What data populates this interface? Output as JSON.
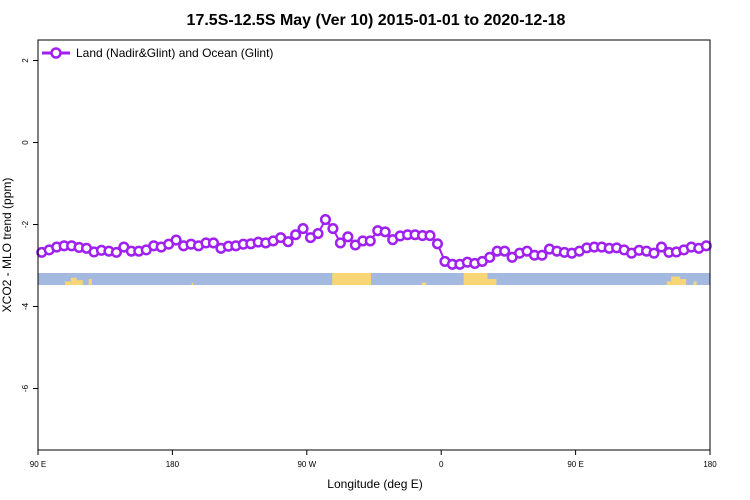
{
  "chart_data": {
    "type": "line",
    "title": "17.5S-12.5S May (Ver 10)   2015-01-01 to 2020-12-18",
    "xlabel": "Longitude (deg E)",
    "ylabel": "XCO2 - MLO trend (ppm)",
    "x_ticks": [
      {
        "value": 90,
        "label": "90 E"
      },
      {
        "value": 180,
        "label": "180"
      },
      {
        "value": 270,
        "label": "90 W"
      },
      {
        "value": 360,
        "label": "0"
      },
      {
        "value": 450,
        "label": "90 E"
      },
      {
        "value": 540,
        "label": "180"
      }
    ],
    "y_ticks": [
      {
        "value": 2,
        "label": "2"
      },
      {
        "value": 0,
        "label": "0"
      },
      {
        "value": -2,
        "label": "-2"
      },
      {
        "value": -4,
        "label": "-4"
      },
      {
        "value": -6,
        "label": "-6"
      }
    ],
    "xlim": [
      90,
      540
    ],
    "ylim": [
      -7.5,
      2.5
    ],
    "legend": {
      "position": "top-left",
      "entries": [
        "Land (Nadir&Glint) and Ocean (Glint)"
      ]
    },
    "colors": {
      "series": "#a020f0",
      "ocean": "#a3b9df",
      "land": "#f8d675"
    },
    "series": [
      {
        "name": "Land (Nadir&Glint) and Ocean (Glint)",
        "x": [
          92.5,
          97.5,
          102.5,
          107.5,
          112.5,
          117.5,
          122.5,
          127.5,
          132.5,
          137.5,
          142.5,
          147.5,
          152.5,
          157.5,
          162.5,
          167.5,
          172.5,
          177.5,
          182.5,
          187.5,
          192.5,
          197.5,
          202.5,
          207.5,
          212.5,
          217.5,
          222.5,
          227.5,
          232.5,
          237.5,
          242.5,
          247.5,
          252.5,
          257.5,
          262.5,
          267.5,
          272.5,
          277.5,
          282.5,
          287.5,
          292.5,
          297.5,
          302.5,
          307.5,
          312.5,
          317.5,
          322.5,
          327.5,
          332.5,
          337.5,
          342.5,
          347.5,
          352.5,
          357.5,
          362.5,
          367.5,
          372.5,
          377.5,
          382.5,
          387.5,
          392.5,
          397.5,
          402.5,
          407.5,
          412.5,
          417.5,
          422.5,
          427.5,
          432.5,
          437.5,
          442.5,
          447.5,
          452.5,
          457.5,
          462.5,
          467.5,
          472.5,
          477.5,
          482.5,
          487.5,
          492.5,
          497.5,
          502.5,
          507.5,
          512.5,
          517.5,
          522.5,
          527.5,
          532.5,
          537.5
        ],
        "y": [
          -2.68,
          -2.62,
          -2.55,
          -2.52,
          -2.52,
          -2.56,
          -2.58,
          -2.67,
          -2.63,
          -2.65,
          -2.68,
          -2.55,
          -2.65,
          -2.65,
          -2.62,
          -2.52,
          -2.55,
          -2.48,
          -2.38,
          -2.52,
          -2.48,
          -2.52,
          -2.45,
          -2.45,
          -2.58,
          -2.53,
          -2.52,
          -2.48,
          -2.47,
          -2.43,
          -2.45,
          -2.4,
          -2.32,
          -2.42,
          -2.25,
          -2.1,
          -2.32,
          -2.22,
          -1.88,
          -2.1,
          -2.45,
          -2.3,
          -2.5,
          -2.4,
          -2.4,
          -2.15,
          -2.18,
          -2.37,
          -2.28,
          -2.25,
          -2.25,
          -2.27,
          -2.27,
          -2.47,
          -2.9,
          -2.97,
          -2.97,
          -2.92,
          -2.95,
          -2.9,
          -2.8,
          -2.65,
          -2.65,
          -2.8,
          -2.7,
          -2.65,
          -2.75,
          -2.75,
          -2.6,
          -2.65,
          -2.68,
          -2.7,
          -2.65,
          -2.57,
          -2.55,
          -2.55,
          -2.58,
          -2.57,
          -2.62,
          -2.7,
          -2.63,
          -2.65,
          -2.7,
          -2.55,
          -2.68,
          -2.67,
          -2.62,
          -2.55,
          -2.58,
          -2.52
        ]
      }
    ]
  }
}
